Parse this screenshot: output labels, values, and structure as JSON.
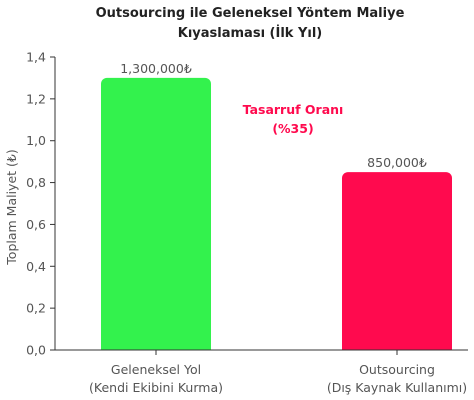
{
  "chart_data": {
    "type": "bar",
    "title_lines": [
      "Outsourcing ile Geleneksel Yöntem Maliye",
      "Kıyaslaması (İlk Yıl)"
    ],
    "ylabel": "Toplam Maliyet (₺)",
    "xlabel": "",
    "ylim": [
      0,
      1.4
    ],
    "yticks": [
      {
        "value": 0.0,
        "label": "0,0"
      },
      {
        "value": 0.2,
        "label": "0,2"
      },
      {
        "value": 0.4,
        "label": "0,4"
      },
      {
        "value": 0.6,
        "label": "0,6"
      },
      {
        "value": 0.8,
        "label": "0,8"
      },
      {
        "value": 1.0,
        "label": "1,0"
      },
      {
        "value": 1.2,
        "label": "1,2"
      },
      {
        "value": 1.4,
        "label": "1,4"
      }
    ],
    "categories": [
      [
        "Geleneksel Yol",
        "(Kendi Ekibini Kurma)"
      ],
      [
        "Outsourcing",
        "(Dış Kaynak Kullanımı)"
      ]
    ],
    "values": [
      1.3,
      0.85
    ],
    "data_labels": [
      "1,300,000₺",
      "850,000₺"
    ],
    "colors": [
      "#33f24d",
      "#ff0a4e"
    ],
    "annotation": {
      "lines": [
        "Tasarruf Oranı",
        "(%35)"
      ],
      "color": "#ff0a4e"
    },
    "grid": false,
    "legend": "none"
  }
}
